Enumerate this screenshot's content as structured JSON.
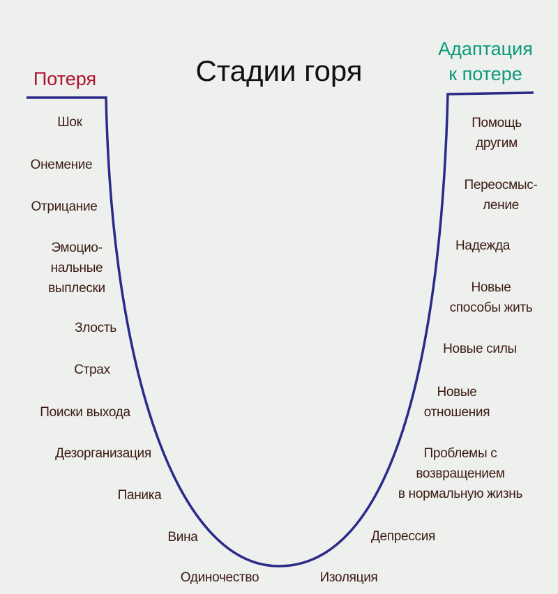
{
  "title": "Стадии горя",
  "start_label": "Потеря",
  "end_label": "Адаптация\nк потере",
  "colors": {
    "curve": "#2a2a8a",
    "start": "#b0102e",
    "end": "#0c9a7a",
    "labels": "#3b1a12"
  },
  "left_stages": [
    "Шок",
    "Онемение",
    "Отрицание",
    "Эмоцио-\nнальные\nвыплески",
    "Злость",
    "Страх",
    "Поиски выхода",
    "Дезорганизация",
    "Паника",
    "Вина",
    "Одиночество"
  ],
  "right_stages": [
    "Изоляция",
    "Депрессия",
    "Проблемы с\nвозвращением\nв нормальную жизнь",
    "Новые\nотношения",
    "Новые силы",
    "Новые\nспособы жить",
    "Надежда",
    "Переосмыс-\nление",
    "Помощь\nдругим"
  ]
}
